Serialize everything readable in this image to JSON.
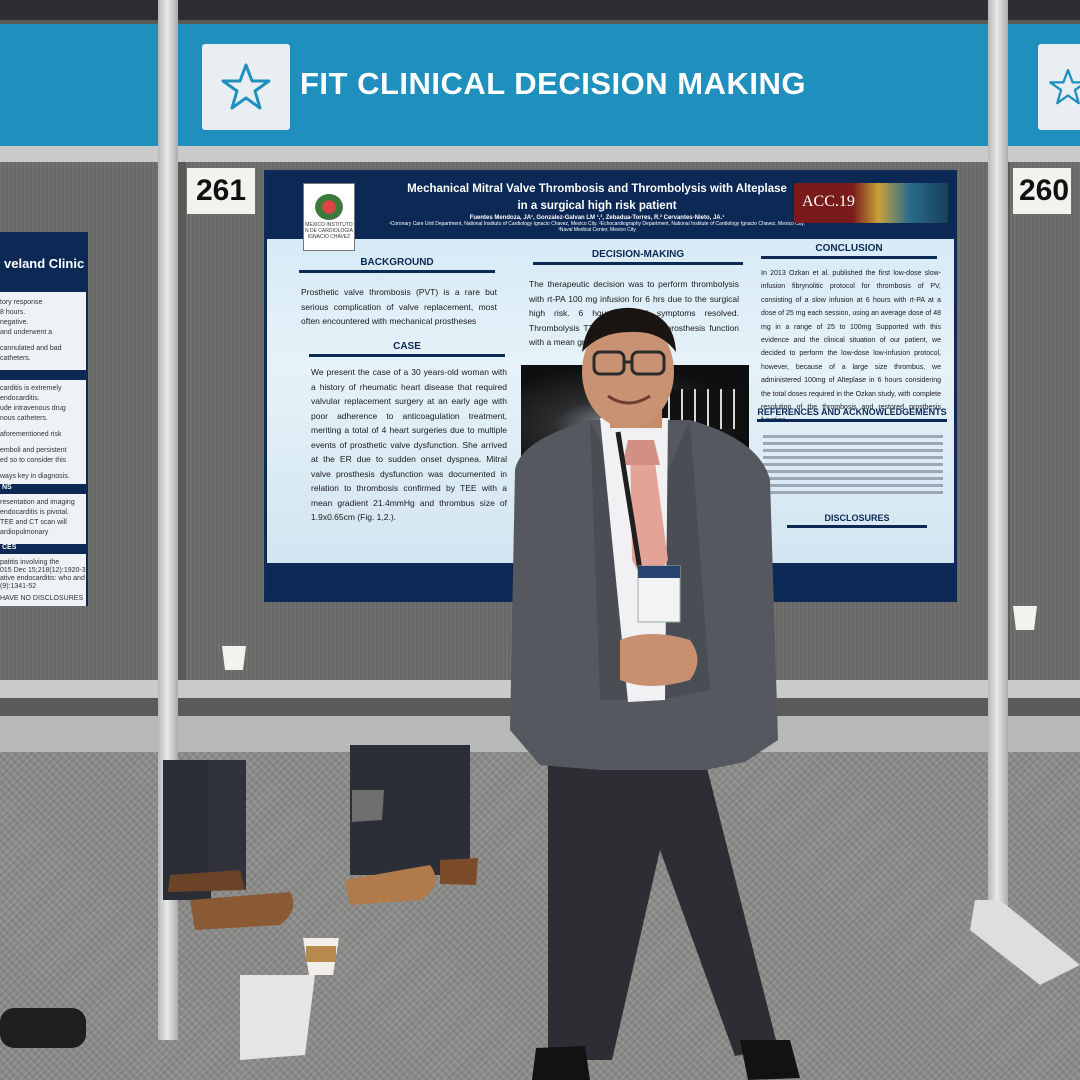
{
  "banner": {
    "title": "FIT CLINICAL DECISION MAKING",
    "icon": "star-icon",
    "color": "#1f8fbe"
  },
  "booths": {
    "left_number": "261",
    "right_number": "260"
  },
  "poster": {
    "title_line1": "Mechanical Mitral Valve Thrombosis and Thrombolysis with Alteplase",
    "title_line2": "in a surgical high risk patient",
    "authors": "Fuentes Mendoza, JA¹, Gonzalez-Galvan LM ¹,³, Zebadua-Torres, R.² Cervantes-Nieto, JA.¹",
    "affiliations": "¹Coronary Care Unit Department, National Instituto of Cardiology Ignacio Chavez, Mexico City. ²Echocardiography Department, National Institute of Cardiology Ignacio Chavez, Mexico City. ³Naval Medical Center, Mexico City",
    "logo_text": "MEXICO INSTITUTO N DE CARDIOLOGIA IGNACIO CHAVEZ",
    "conference_logo": "ACC.19",
    "background_heading": "BACKGROUND",
    "background_text": "Prosthetic valve thrombosis (PVT) is a rare but serious complication of valve replacement, most often encountered with mechanical prostheses",
    "case_heading": "CASE",
    "case_text": "We present the case of a 30 years-old woman with a history of rheumatic heart disease that required valvular replacement surgery at an early age with poor adherence to anticoagulation treatment, meriting a total of 4 heart surgeries due to multiple events of prosthetic valve dysfunction. She arrived at the ER due to sudden onset dyspnea. Mitral valve prosthesis dysfunction was documented in relation to thrombosis confirmed by TEE with a mean gradient 21.4mmHg and thrombus size of 1.9x0.65cm (Fig. 1,2.).",
    "decision_heading": "DECISION-MAKING",
    "decision_text": "The therapeutic decision was to perform thrombolysis with rt-PA 100 mg infusion for 6 hrs due to the surgical high risk. 6 hours clinical symptoms resolved. Thrombolysis TTE showed normal prosthesis function with a mean gradient of 3.72",
    "conclusion_heading": "CONCLUSION",
    "conclusion_text": "In 2013 Ozkan et al. published the first low-dose slow-infusion fibrynolitic protocol for thrombosis of PV, consisting of a slow infusion at 6 hours with rt-PA at a dose of 25 mg each session, using an average dose of 48 mg in a range of 25 to 100mg Supported with this evidence and the clinical situation of our patient, we decided to perform the low-dose low-infusion protocol, however, because of a large size thrombus, we administered 100mg of Alteplase in 6 hours considering the total doses required in the Ozkan study, with complete resolution of the thrombosis and restored prosthesis function.",
    "references_heading": "REFERENCES AND ACKNOWLEDGEMENTS",
    "disclosures_heading": "DISCLOSURES"
  },
  "left_poster": {
    "header": "veland Clinic",
    "lines": [
      "tory response",
      "8 hours.",
      "negative.",
      "and underwent a",
      "",
      "cannulated and bad",
      "catheters.",
      "",
      "carditis is extremely",
      "endocarditis.",
      "ude intravenous drug",
      "nous catheters.",
      "",
      "aforementioned risk",
      "",
      "emboli and persistent",
      "ed so to consider this",
      "",
      "ways key in diagnosis."
    ],
    "bar1": "NS",
    "lines2": [
      "resentation and imaging",
      "endocarditis is pivotal.",
      "TEE and CT scan will",
      "ardiopulmonary"
    ],
    "bar2": "CES",
    "lines3": [
      "patitis involving the",
      "015 Dec 15;218(12):1920-31",
      "ative endocarditis: who and",
      "(9):1341-52"
    ],
    "footer": "HAVE NO DISCLOSURES"
  }
}
